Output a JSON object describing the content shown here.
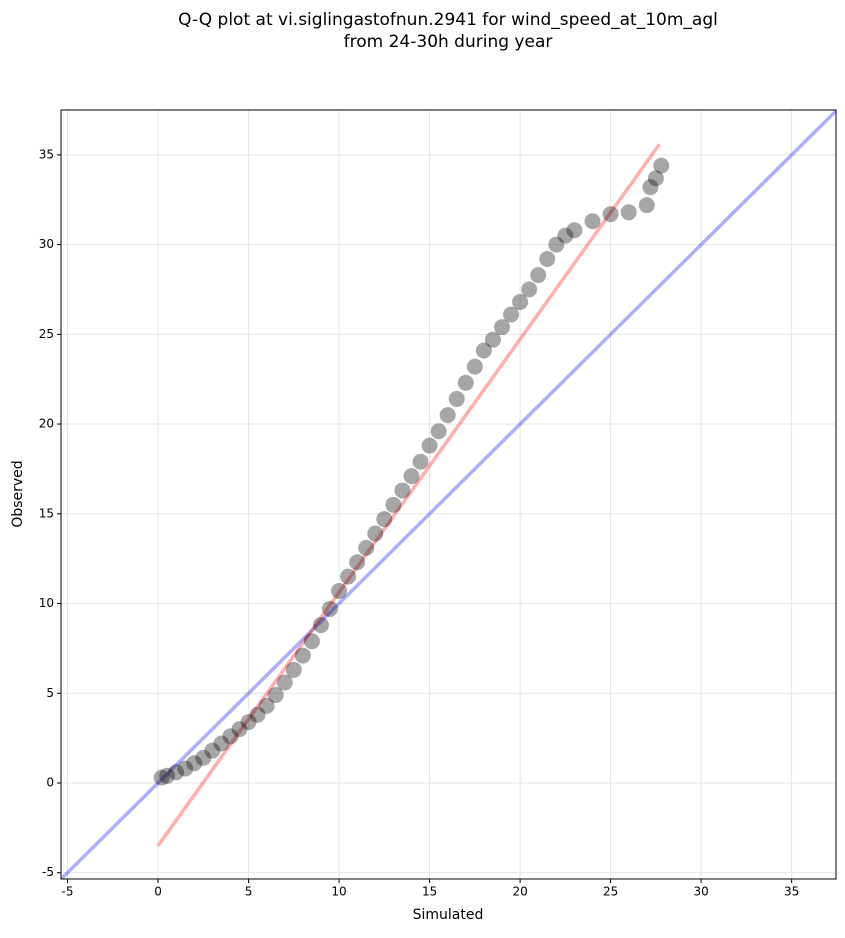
{
  "chart_data": {
    "type": "scatter",
    "title": [
      "Q-Q plot at vi.siglingastofnun.2941 for wind_speed_at_10m_agl",
      "from 24-30h during year"
    ],
    "xlabel": "Simulated",
    "ylabel": "Observed",
    "xlim": [
      -5.36,
      37.45
    ],
    "ylim": [
      -5.35,
      37.5
    ],
    "xticks": [
      -5,
      0,
      5,
      10,
      15,
      20,
      25,
      30,
      35
    ],
    "yticks": [
      -5,
      0,
      5,
      10,
      15,
      20,
      25,
      30,
      35
    ],
    "grid": true,
    "series": [
      {
        "color": "#000000",
        "x": [
          0.2,
          0.5,
          1,
          1.5,
          2,
          2.5,
          3,
          3.5,
          4,
          4.5,
          5,
          5.5,
          6,
          6.5,
          7,
          7.5,
          8,
          8.5,
          9,
          9.5,
          10,
          10.5,
          11,
          11.5,
          12,
          12.5,
          13,
          13.5,
          14,
          14.5,
          15,
          15.5,
          16,
          16.5,
          17,
          17.5,
          18,
          18.5,
          19,
          19.5,
          20,
          20.5,
          21,
          21.5,
          22,
          22.5,
          23,
          24,
          25,
          26,
          27,
          27.2,
          27.5,
          27.8
        ],
        "values": [
          0.3,
          0.4,
          0.6,
          0.8,
          1.1,
          1.4,
          1.8,
          2.2,
          2.6,
          3.0,
          3.4,
          3.8,
          4.3,
          4.9,
          5.6,
          6.3,
          7.1,
          7.9,
          8.8,
          9.7,
          10.7,
          11.5,
          12.3,
          13.1,
          13.9,
          14.7,
          15.5,
          16.3,
          17.1,
          17.9,
          18.8,
          19.6,
          20.5,
          21.4,
          22.3,
          23.2,
          24.1,
          24.7,
          25.4,
          26.1,
          26.8,
          27.5,
          28.3,
          29.2,
          30.0,
          30.5,
          30.8,
          31.3,
          31.7,
          31.8,
          32.2,
          33.2,
          33.7,
          34.4
        ]
      }
    ],
    "lines": [
      {
        "color": "#0000ff",
        "x": [
          -5.36,
          37.45
        ],
        "values": [
          -5.36,
          37.45
        ]
      },
      {
        "color": "#ff0000",
        "x": [
          0,
          27.7
        ],
        "values": [
          -3.5,
          35.6
        ]
      }
    ]
  }
}
